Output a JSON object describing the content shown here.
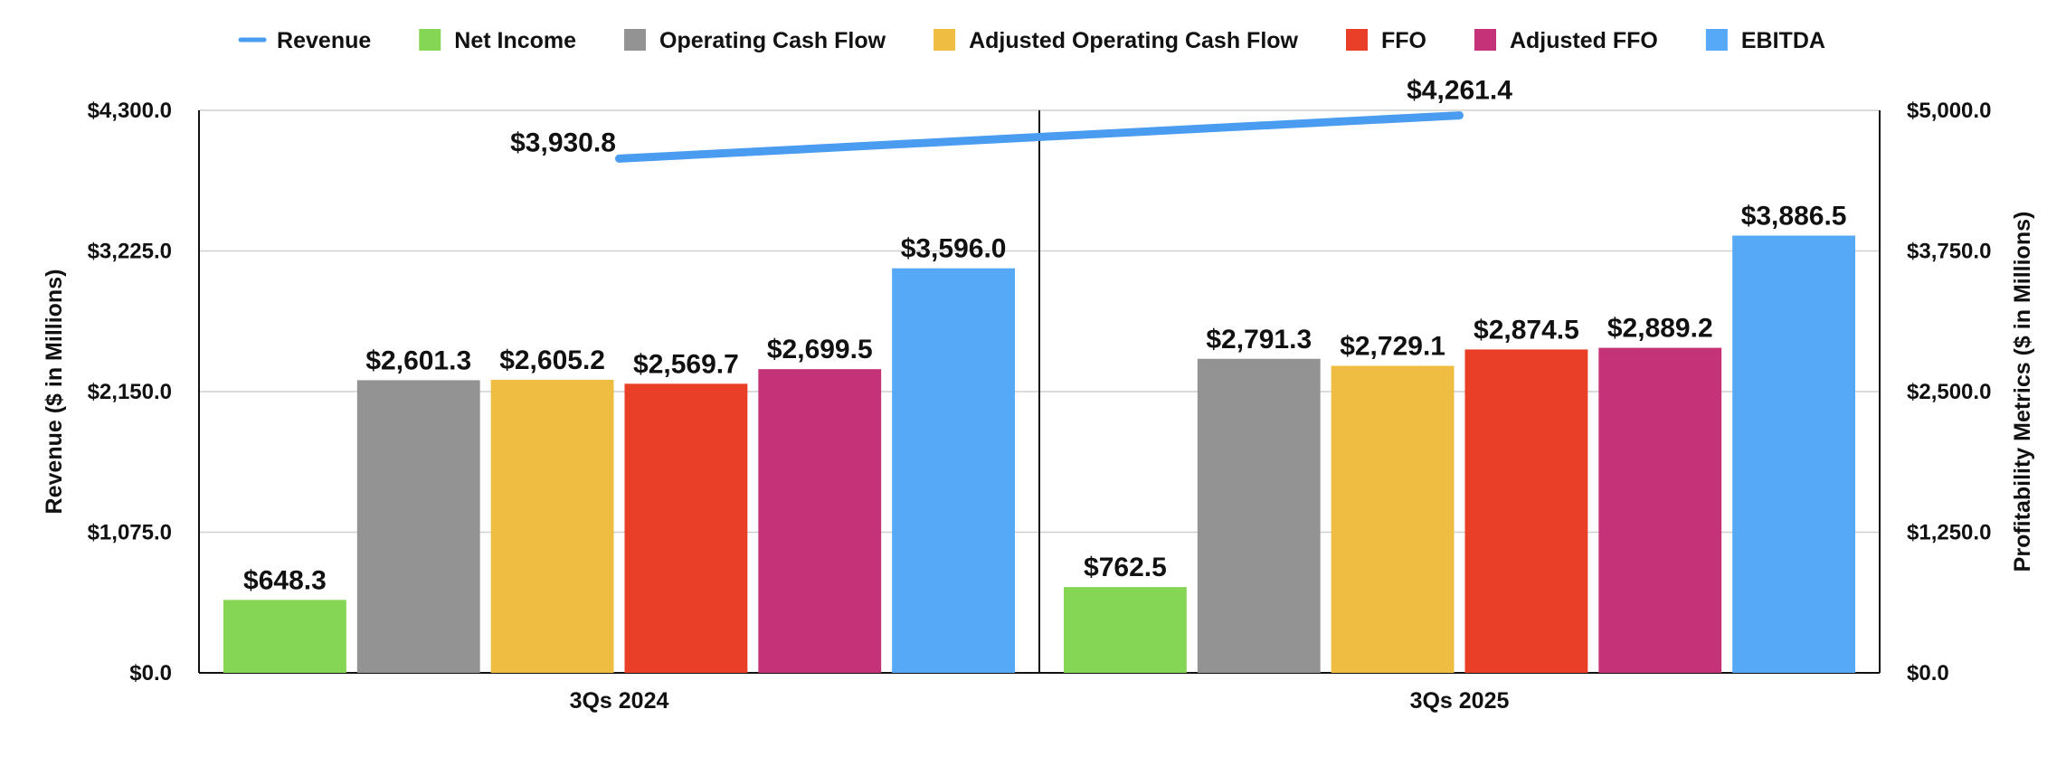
{
  "chart_data": {
    "type": "bar",
    "categories": [
      "3Qs 2024",
      "3Qs 2025"
    ],
    "ylabel": "Revenue ($ in Millions)",
    "y2label": "Profitability Metrics ($ in Millions)",
    "ylim": [
      0,
      4300
    ],
    "y2lim": [
      0,
      5000
    ],
    "yticks": [
      "$0.0",
      "$1,075.0",
      "$2,150.0",
      "$3,225.0",
      "$4,300.0"
    ],
    "y2ticks": [
      "$0.0",
      "$1,250.0",
      "$2,500.0",
      "$3,750.0",
      "$5,000.0"
    ],
    "grid": true,
    "legend_position": "top",
    "line_series": {
      "name": "Revenue",
      "axis": "left",
      "color": "#4a9cf0",
      "values": [
        3930.8,
        4261.4
      ],
      "labels": [
        "$3,930.8",
        "$4,261.4"
      ]
    },
    "series": [
      {
        "name": "Net Income",
        "axis": "right",
        "color": "#84d654",
        "values": [
          648.3,
          762.5
        ],
        "labels": [
          "$648.3",
          "$762.5"
        ]
      },
      {
        "name": "Operating Cash Flow",
        "axis": "right",
        "color": "#939393",
        "values": [
          2601.3,
          2791.3
        ],
        "labels": [
          "$2,601.3",
          "$2,791.3"
        ]
      },
      {
        "name": "Adjusted Operating Cash Flow",
        "axis": "right",
        "color": "#eebd42",
        "values": [
          2605.2,
          2729.1
        ],
        "labels": [
          "$2,605.2",
          "$2,729.1"
        ]
      },
      {
        "name": "FFO",
        "axis": "right",
        "color": "#e83f26",
        "values": [
          2569.7,
          2874.5
        ],
        "labels": [
          "$2,569.7",
          "$2,874.5"
        ]
      },
      {
        "name": "Adjusted FFO",
        "axis": "right",
        "color": "#c43278",
        "values": [
          2699.5,
          2889.2
        ],
        "labels": [
          "$2,699.5",
          "$2,889.2"
        ]
      },
      {
        "name": "EBITDA",
        "axis": "right",
        "color": "#56a9f7",
        "values": [
          3596.0,
          3886.5
        ],
        "labels": [
          "$3,596.0",
          "$3,886.5"
        ]
      }
    ]
  }
}
